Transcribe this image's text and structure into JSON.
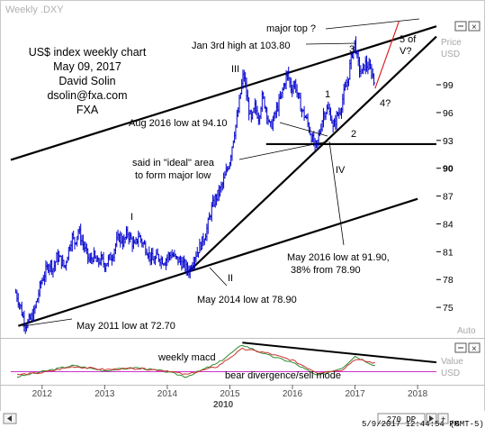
{
  "window": {
    "title": "Weekly .DXY",
    "timeframe": "270 DP",
    "timestamp": "5/9/2017 12:44:54 PM",
    "timezone": "(GMT-5)"
  },
  "header_text": {
    "line1": "US$ index weekly chart",
    "line2": "May 09, 2017",
    "line3": "David Solin",
    "line4": "dsolin@fxa.com",
    "line5": "FXA"
  },
  "axis_labels": {
    "price": "Price",
    "price_unit": "USD",
    "value": "Value",
    "value_unit": "USD",
    "auto": "Auto",
    "year_center": "2010"
  },
  "annotations": {
    "major_top": "major top ?",
    "jan_high": "Jan 3rd high at 103.80",
    "wave3": "3",
    "five_of": "5 of",
    "v_q": "V?",
    "wave_III": "III",
    "wave1": "1",
    "wave2": "2",
    "wave4": "4?",
    "aug_low": "Aug 2016 low at 94.10",
    "ideal1": "said in \"ideal\" area",
    "ideal2": "to form major low",
    "wave_IV": "IV",
    "wave_I": "I",
    "wave_II": "II",
    "may16_1": "May 2016 low at 91.90,",
    "may16_2": "38% from 78.90",
    "may14": "May 2014 low at 78.90",
    "may11": "May 2011 low at 72.70",
    "macd": "weekly macd",
    "bear": "bear divergence/sell mode"
  },
  "colors": {
    "price_bars": "#0000cc",
    "macd_green": "#2e8b2e",
    "macd_red": "#cc3333",
    "macd_zero": "#cc33cc",
    "projection": "#dd2222",
    "trendline": "#000000",
    "axis_highlight": "#000000"
  },
  "chart_data": [
    {
      "type": "line",
      "title": "Weekly .DXY",
      "ylabel": "Price USD",
      "ylim": [
        72,
        106
      ],
      "yticks": [
        75,
        78,
        81,
        84,
        87,
        90,
        93,
        96,
        99
      ],
      "ytick_highlight": 90,
      "xlim": [
        2011.5,
        2018.3
      ],
      "xticks": [
        2012,
        2013,
        2014,
        2015,
        2016,
        2017,
        2018
      ],
      "grid": false,
      "series": [
        {
          "name": "",
          "kind": "weekly-bars",
          "points": [
            [
              2011.58,
              76.6
            ],
            [
              2011.62,
              75.8
            ],
            [
              2011.66,
              74.9
            ],
            [
              2011.7,
              73.8
            ],
            [
              2011.74,
              73.1
            ],
            [
              2011.8,
              73.6
            ],
            [
              2011.86,
              74.2
            ],
            [
              2011.92,
              75.8
            ],
            [
              2011.98,
              77.6
            ],
            [
              2012.06,
              78.9
            ],
            [
              2012.12,
              79.8
            ],
            [
              2012.18,
              79.2
            ],
            [
              2012.24,
              80.5
            ],
            [
              2012.3,
              80.1
            ],
            [
              2012.36,
              79.3
            ],
            [
              2012.42,
              81.2
            ],
            [
              2012.48,
              82.6
            ],
            [
              2012.52,
              82.0
            ],
            [
              2012.58,
              83.3
            ],
            [
              2012.64,
              82.1
            ],
            [
              2012.7,
              81.0
            ],
            [
              2012.76,
              79.9
            ],
            [
              2012.82,
              80.6
            ],
            [
              2012.88,
              79.7
            ],
            [
              2012.94,
              80.2
            ],
            [
              2013.0,
              79.6
            ],
            [
              2013.06,
              80.1
            ],
            [
              2013.12,
              80.6
            ],
            [
              2013.18,
              81.9
            ],
            [
              2013.24,
              82.7
            ],
            [
              2013.3,
              81.9
            ],
            [
              2013.36,
              83.1
            ],
            [
              2013.42,
              82.3
            ],
            [
              2013.48,
              81.5
            ],
            [
              2013.54,
              82.8
            ],
            [
              2013.6,
              82.0
            ],
            [
              2013.66,
              81.4
            ],
            [
              2013.72,
              80.6
            ],
            [
              2013.78,
              79.9
            ],
            [
              2013.84,
              80.5
            ],
            [
              2013.9,
              80.2
            ],
            [
              2013.96,
              80.0
            ],
            [
              2014.02,
              80.6
            ],
            [
              2014.08,
              80.7
            ],
            [
              2014.14,
              80.2
            ],
            [
              2014.2,
              80.0
            ],
            [
              2014.26,
              79.6
            ],
            [
              2014.3,
              79.2
            ],
            [
              2014.35,
              78.9
            ],
            [
              2014.42,
              80.3
            ],
            [
              2014.5,
              81.3
            ],
            [
              2014.58,
              82.4
            ],
            [
              2014.64,
              83.6
            ],
            [
              2014.7,
              85.5
            ],
            [
              2014.76,
              86.6
            ],
            [
              2014.82,
              87.3
            ],
            [
              2014.88,
              88.2
            ],
            [
              2014.94,
              89.5
            ],
            [
              2015.0,
              90.9
            ],
            [
              2015.06,
              93.5
            ],
            [
              2015.12,
              95.5
            ],
            [
              2015.18,
              98.6
            ],
            [
              2015.22,
              100.3
            ],
            [
              2015.28,
              97.2
            ],
            [
              2015.34,
              95.0
            ],
            [
              2015.4,
              96.6
            ],
            [
              2015.46,
              95.5
            ],
            [
              2015.52,
              97.7
            ],
            [
              2015.58,
              96.4
            ],
            [
              2015.64,
              94.3
            ],
            [
              2015.7,
              95.3
            ],
            [
              2015.76,
              96.6
            ],
            [
              2015.82,
              97.8
            ],
            [
              2015.88,
              99.4
            ],
            [
              2015.92,
              100.2
            ],
            [
              2015.98,
              98.6
            ],
            [
              2016.04,
              99.2
            ],
            [
              2016.1,
              97.3
            ],
            [
              2016.16,
              96.1
            ],
            [
              2016.22,
              95.3
            ],
            [
              2016.28,
              94.0
            ],
            [
              2016.34,
              92.6
            ],
            [
              2016.38,
              92.2
            ],
            [
              2016.44,
              94.1
            ],
            [
              2016.5,
              96.0
            ],
            [
              2016.56,
              96.4
            ],
            [
              2016.62,
              95.6
            ],
            [
              2016.65,
              94.2
            ],
            [
              2016.7,
              95.5
            ],
            [
              2016.76,
              96.2
            ],
            [
              2016.82,
              98.0
            ],
            [
              2016.88,
              99.3
            ],
            [
              2016.92,
              101.1
            ],
            [
              2016.96,
              102.6
            ],
            [
              2017.0,
              103.7
            ],
            [
              2017.04,
              101.4
            ],
            [
              2017.1,
              100.1
            ],
            [
              2017.16,
              101.3
            ],
            [
              2017.22,
              100.8
            ],
            [
              2017.28,
              100.2
            ],
            [
              2017.32,
              98.6
            ]
          ]
        }
      ],
      "trendlines": [
        {
          "from": [
            2011.62,
            73.0
          ],
          "to": [
            2018.0,
            86.7
          ],
          "label": "lower channel"
        },
        {
          "from": [
            2011.5,
            90.9
          ],
          "to": [
            2018.3,
            105.3
          ],
          "label": "upper channel"
        },
        {
          "from": [
            2014.35,
            78.9
          ],
          "to": [
            2018.3,
            104.2
          ],
          "label": "support from May 2014 low"
        },
        {
          "from": [
            2015.58,
            92.6
          ],
          "to": [
            2018.3,
            92.6
          ],
          "label": "horizontal support"
        },
        {
          "from": [
            2017.32,
            98.6
          ],
          "to": [
            2017.7,
            105.8
          ],
          "label": "5 of V? projection"
        }
      ]
    },
    {
      "type": "line",
      "title": "weekly macd",
      "ylabel": "Value USD",
      "series": [
        {
          "name": "",
          "points": [
            [
              2011.6,
              -0.5
            ],
            [
              2012.0,
              0.0
            ],
            [
              2012.5,
              0.6
            ],
            [
              2013.0,
              0.1
            ],
            [
              2013.5,
              0.4
            ],
            [
              2014.0,
              0.0
            ],
            [
              2014.3,
              -0.5
            ],
            [
              2014.8,
              0.8
            ],
            [
              2015.2,
              2.6
            ],
            [
              2015.6,
              1.6
            ],
            [
              2016.0,
              0.9
            ],
            [
              2016.4,
              -0.4
            ],
            [
              2016.8,
              0.4
            ],
            [
              2017.0,
              1.5
            ],
            [
              2017.35,
              0.5
            ]
          ]
        },
        {
          "name": "",
          "points": [
            [
              2011.6,
              -0.3
            ],
            [
              2012.0,
              -0.1
            ],
            [
              2012.5,
              0.5
            ],
            [
              2013.0,
              0.2
            ],
            [
              2013.5,
              0.3
            ],
            [
              2014.0,
              0.1
            ],
            [
              2014.3,
              -0.3
            ],
            [
              2014.8,
              0.5
            ],
            [
              2015.2,
              2.2
            ],
            [
              2015.6,
              1.8
            ],
            [
              2016.0,
              1.1
            ],
            [
              2016.4,
              -0.1
            ],
            [
              2016.8,
              0.2
            ],
            [
              2017.0,
              1.2
            ],
            [
              2017.35,
              0.8
            ]
          ]
        }
      ],
      "trendlines": [
        {
          "from": [
            2015.2,
            2.8
          ],
          "to": [
            2018.3,
            0.9
          ],
          "label": "bear divergence line"
        }
      ]
    }
  ]
}
